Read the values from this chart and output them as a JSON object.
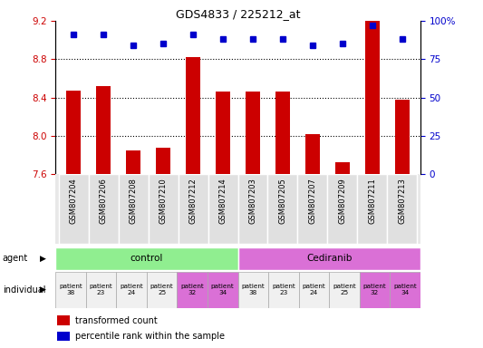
{
  "title": "GDS4833 / 225212_at",
  "samples": [
    "GSM807204",
    "GSM807206",
    "GSM807208",
    "GSM807210",
    "GSM807212",
    "GSM807214",
    "GSM807203",
    "GSM807205",
    "GSM807207",
    "GSM807209",
    "GSM807211",
    "GSM807213"
  ],
  "bar_values": [
    8.47,
    8.52,
    7.85,
    7.87,
    8.82,
    8.46,
    8.46,
    8.46,
    8.02,
    7.72,
    9.2,
    8.38
  ],
  "dot_values": [
    91,
    91,
    84,
    85,
    91,
    88,
    88,
    88,
    84,
    85,
    97,
    88
  ],
  "bar_color": "#cc0000",
  "dot_color": "#0000cc",
  "ylim_left": [
    7.6,
    9.2
  ],
  "ylim_right": [
    0,
    100
  ],
  "yticks_left": [
    7.6,
    8.0,
    8.4,
    8.8,
    9.2
  ],
  "yticks_right": [
    0,
    25,
    50,
    75,
    100
  ],
  "ytick_labels_right": [
    "0",
    "25",
    "50",
    "75",
    "100%"
  ],
  "hlines": [
    8.0,
    8.4,
    8.8
  ],
  "agent_groups": [
    {
      "label": "control",
      "start": 0,
      "end": 6,
      "color": "#90ee90"
    },
    {
      "label": "Cediranib",
      "start": 6,
      "end": 12,
      "color": "#da70d6"
    }
  ],
  "individual_patients_control": [
    "patient\n38",
    "patient\n23",
    "patient\n24",
    "patient\n25",
    "patient\n32",
    "patient\n34"
  ],
  "individual_patients_cediranib": [
    "patient\n38",
    "patient\n23",
    "patient\n24",
    "patient\n25",
    "patient\n32",
    "patient\n34"
  ],
  "patient_colors_control": [
    "#f0f0f0",
    "#f0f0f0",
    "#f0f0f0",
    "#f0f0f0",
    "#da70d6",
    "#da70d6"
  ],
  "patient_colors_cediranib": [
    "#f0f0f0",
    "#f0f0f0",
    "#f0f0f0",
    "#f0f0f0",
    "#da70d6",
    "#da70d6"
  ],
  "legend_items": [
    "transformed count",
    "percentile rank within the sample"
  ],
  "legend_colors": [
    "#cc0000",
    "#0000cc"
  ],
  "agent_label": "agent",
  "individual_label": "individual",
  "tick_color_left": "#cc0000",
  "tick_color_right": "#0000cc",
  "bar_width": 0.5,
  "background_color": "#ffffff"
}
